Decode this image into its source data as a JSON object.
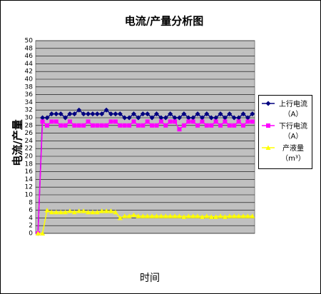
{
  "chart_data": {
    "type": "line",
    "title": "电流/产量分析图",
    "y_label": "电流/产量",
    "x_label": "时间",
    "categories": [
      null,
      null,
      null,
      null,
      null,
      null,
      null,
      null,
      null,
      null,
      null,
      null,
      null,
      null,
      null,
      null,
      null,
      null,
      null,
      null,
      null,
      null,
      null,
      null,
      null,
      null,
      null,
      null,
      null,
      null,
      null,
      null,
      null,
      null,
      null,
      null,
      null,
      null,
      null,
      null,
      null,
      null,
      null,
      null,
      null,
      null,
      null,
      null
    ],
    "series": [
      {
        "name": "上行电流（A）",
        "color": "#000080",
        "marker": "diamond",
        "values": [
          0,
          30,
          30,
          31,
          31,
          31,
          30,
          31,
          31,
          32,
          31,
          31,
          31,
          31,
          31,
          32,
          31,
          31,
          31,
          30,
          30,
          31,
          30,
          31,
          31,
          30,
          31,
          30,
          30,
          31,
          30,
          30,
          31,
          30,
          30,
          31,
          30,
          31,
          30,
          30,
          31,
          30,
          31,
          30,
          30,
          31,
          30,
          31
        ]
      },
      {
        "name": "下行电流（A）",
        "color": "#ff00ff",
        "marker": "square",
        "values": [
          0,
          29,
          28,
          29,
          29,
          28,
          28,
          29,
          28,
          28,
          28,
          29,
          28,
          28,
          28,
          28,
          29,
          29,
          28,
          28,
          28,
          29,
          28,
          28,
          29,
          28,
          28,
          29,
          28,
          29,
          29,
          27,
          28,
          29,
          29,
          28,
          29,
          28,
          28,
          29,
          28,
          29,
          28,
          28,
          29,
          28,
          29,
          29
        ]
      },
      {
        "name": "产液量（m³）",
        "color": "#ffff00",
        "marker": "triangle",
        "values": [
          0,
          0,
          6,
          5.5,
          5.5,
          5.5,
          5.5,
          5.8,
          5.5,
          5.8,
          5.8,
          5.5,
          5.5,
          5.5,
          5.8,
          5.8,
          5.8,
          5.5,
          4,
          4.5,
          4.5,
          4.8,
          4.5,
          4.5,
          4.5,
          4.5,
          4.5,
          4.5,
          4.5,
          4.5,
          4.5,
          4.5,
          4.3,
          4.5,
          4.5,
          4.5,
          4.3,
          4.5,
          4.3,
          4.3,
          4.5,
          4.3,
          4.5,
          4.5,
          4.5,
          4.5,
          4.5,
          4.5
        ]
      }
    ],
    "ylim": [
      0,
      50
    ],
    "yticks": [
      0,
      2,
      4,
      6,
      8,
      10,
      12,
      14,
      16,
      18,
      20,
      22,
      24,
      26,
      28,
      30,
      32,
      34,
      36,
      38,
      40,
      42,
      44,
      46,
      48,
      50
    ],
    "grid": true
  }
}
